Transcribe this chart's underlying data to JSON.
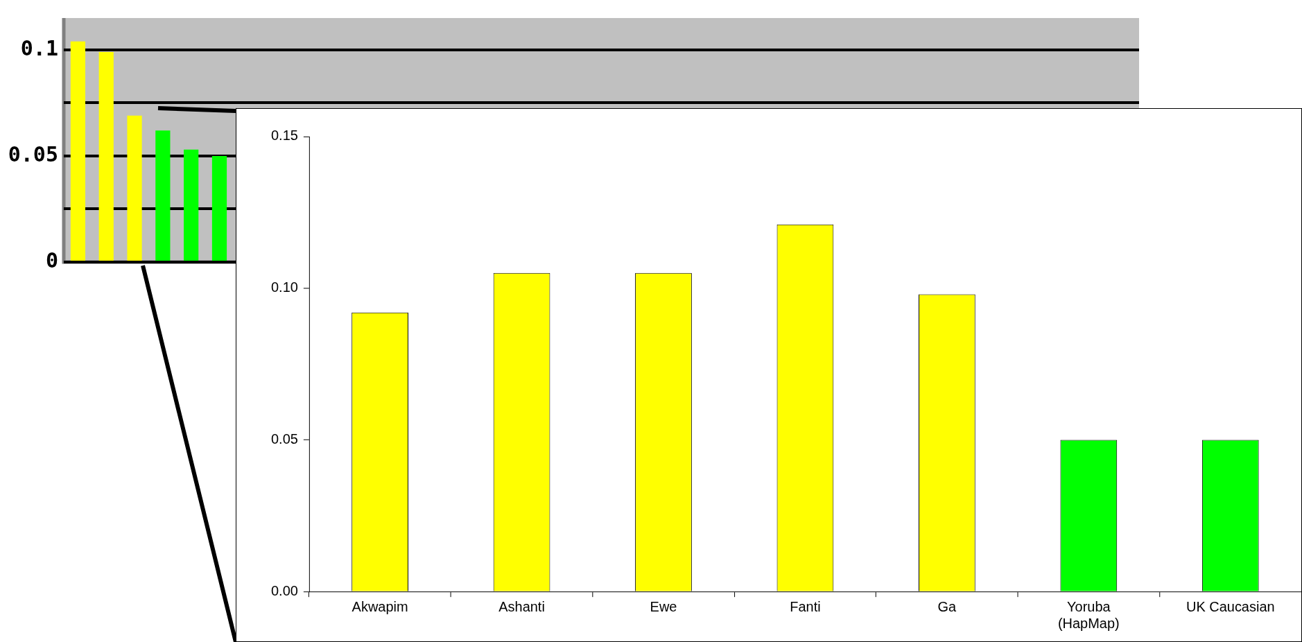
{
  "chart_data": [
    {
      "type": "bar",
      "categories": [
        null,
        null,
        null,
        null,
        null,
        null,
        null,
        null,
        null,
        null,
        null,
        null,
        null,
        null,
        null,
        null,
        null,
        null,
        null,
        null,
        null,
        null,
        null,
        null,
        null,
        null,
        null,
        null,
        null,
        null,
        null,
        null,
        null,
        null,
        null,
        null,
        null,
        null
      ],
      "values": [
        0.104,
        0.099,
        0.069,
        0.062,
        0.053,
        0.05,
        null,
        null,
        null,
        null,
        null,
        null,
        null,
        null,
        null,
        null,
        null,
        null,
        null,
        null,
        null,
        null,
        null,
        null,
        null,
        null,
        null,
        null,
        null,
        null,
        null,
        null,
        null,
        null,
        null,
        null,
        null,
        null
      ],
      "colors": [
        "#ffff00",
        "#ffff00",
        "#ffff00",
        "#00ff00",
        "#00ff00",
        "#00ff00",
        "#00ff00",
        "#00ff00",
        "#00ff00",
        "#00ff00",
        "#00ff00",
        "#00ff00",
        "#00ff00",
        "#00ff00",
        "#00ff00",
        "#00ff00",
        "#00ff00",
        "#00ff00",
        "#00ff00",
        "#00ff00",
        "#00ff00",
        "#00ff00",
        "#00ff00",
        "#00ff00",
        "#00ff00",
        "#00ff00",
        "#00ff00",
        "#00ff00",
        "#00ff00",
        "#00ff00",
        "#00ff00",
        "#00ff00",
        "#00ff00",
        "#00ff00",
        "#00ff00",
        "#00ff00",
        "#00ff00",
        "#00ff00"
      ],
      "ylim": [
        0,
        0.115
      ],
      "yticks": [
        0,
        {
          "value": 0.025,
          "label": null
        },
        0.05,
        {
          "value": 0.075,
          "label": null
        },
        0.1
      ],
      "grid": "y",
      "tick_labels": "y"
    },
    {
      "type": "bar",
      "categories": [
        "Akwapim",
        "Ashanti",
        "Ewe",
        "Fanti",
        "Ga",
        "Yoruba (HapMap)",
        "UK Caucasian"
      ],
      "values": [
        0.092,
        0.105,
        0.105,
        0.121,
        0.098,
        0.05,
        0.05
      ],
      "colors": [
        "#ffff00",
        "#ffff00",
        "#ffff00",
        "#ffff00",
        "#ffff00",
        "#00ff00",
        "#00ff00"
      ],
      "ylim": [
        0,
        0.15
      ],
      "yticks": [
        {
          "value": 0,
          "label": "0.00"
        },
        0.05,
        {
          "value": 0.1,
          "label": "0.10"
        },
        0.15
      ]
    }
  ]
}
